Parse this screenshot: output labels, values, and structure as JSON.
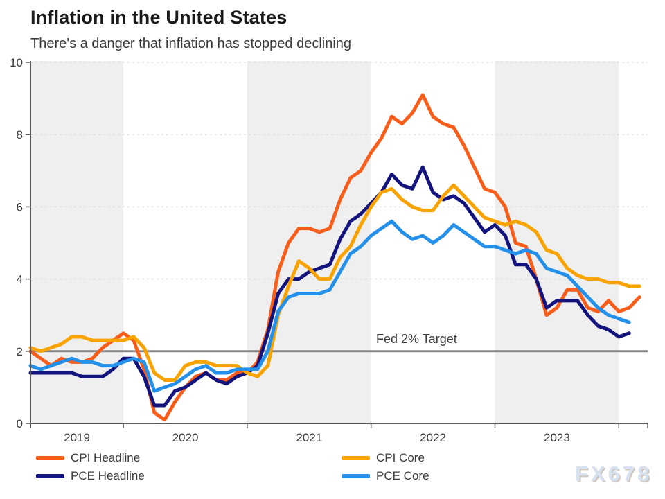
{
  "header": {
    "title": "Inflation in the United States",
    "subtitle": "There's a danger that inflation has stopped declining"
  },
  "watermark": "FX678",
  "annotation": {
    "fed_target_label": "Fed 2% Target",
    "fed_target_value": 2
  },
  "legend": {
    "items": [
      {
        "label": "CPI Headline",
        "series_index": 0
      },
      {
        "label": "PCE Headline",
        "series_index": 1
      },
      {
        "label": "CPI Core",
        "series_index": 2
      },
      {
        "label": "PCE Core",
        "series_index": 3
      }
    ]
  },
  "chart_data": {
    "type": "line",
    "title": "Inflation in the United States",
    "subtitle": "There's a danger that inflation has stopped declining",
    "x_start_month": "2019-04",
    "x_end_month": "2024-03",
    "x_tick_labels": [
      "2019",
      "2020",
      "2021",
      "2022",
      "2023"
    ],
    "ylim": [
      0,
      10
    ],
    "yticks": [
      0,
      2,
      4,
      6,
      8,
      10
    ],
    "grid": "horizontal-dashed",
    "year_band_fill": "#efefef",
    "axis_color": "#595959",
    "gridline_color": "#d9d9d9",
    "target_line": {
      "label": "Fed 2% Target",
      "value": 2,
      "color": "#8a8a8a"
    },
    "legend_position": "bottom",
    "series": [
      {
        "name": "CPI Headline",
        "color": "#F95D1A",
        "values": [
          2.0,
          1.8,
          1.6,
          1.8,
          1.7,
          1.7,
          1.8,
          2.1,
          2.3,
          2.5,
          2.3,
          1.5,
          0.3,
          0.1,
          0.6,
          1.0,
          1.3,
          1.4,
          1.2,
          1.2,
          1.4,
          1.4,
          1.7,
          2.6,
          4.2,
          5.0,
          5.4,
          5.4,
          5.3,
          5.4,
          6.2,
          6.8,
          7.0,
          7.5,
          7.9,
          8.5,
          8.3,
          8.6,
          9.1,
          8.5,
          8.3,
          8.2,
          7.7,
          7.1,
          6.5,
          6.4,
          6.0,
          5.0,
          4.9,
          4.0,
          3.0,
          3.2,
          3.7,
          3.7,
          3.2,
          3.1,
          3.4,
          3.1,
          3.2,
          3.5
        ]
      },
      {
        "name": "PCE Headline",
        "color": "#14147E",
        "values": [
          1.4,
          1.4,
          1.4,
          1.4,
          1.4,
          1.3,
          1.3,
          1.3,
          1.5,
          1.8,
          1.8,
          1.3,
          0.5,
          0.5,
          0.9,
          1.0,
          1.2,
          1.4,
          1.2,
          1.1,
          1.3,
          1.4,
          1.6,
          2.5,
          3.6,
          4.0,
          4.0,
          4.2,
          4.3,
          4.4,
          5.1,
          5.6,
          5.8,
          6.1,
          6.4,
          6.9,
          6.6,
          6.5,
          7.1,
          6.4,
          6.2,
          6.3,
          6.1,
          5.7,
          5.3,
          5.5,
          5.2,
          4.4,
          4.4,
          4.0,
          3.2,
          3.4,
          3.4,
          3.4,
          3.0,
          2.7,
          2.6,
          2.4,
          2.5
        ]
      },
      {
        "name": "CPI Core",
        "color": "#F9A302",
        "values": [
          2.1,
          2.0,
          2.1,
          2.2,
          2.4,
          2.4,
          2.3,
          2.3,
          2.3,
          2.3,
          2.4,
          2.1,
          1.4,
          1.2,
          1.2,
          1.6,
          1.7,
          1.7,
          1.6,
          1.6,
          1.6,
          1.4,
          1.3,
          1.6,
          3.0,
          3.8,
          4.5,
          4.3,
          4.0,
          4.0,
          4.6,
          4.9,
          5.5,
          6.0,
          6.4,
          6.5,
          6.2,
          6.0,
          5.9,
          5.9,
          6.3,
          6.6,
          6.3,
          6.0,
          5.7,
          5.6,
          5.5,
          5.6,
          5.5,
          5.3,
          4.8,
          4.7,
          4.3,
          4.1,
          4.0,
          4.0,
          3.9,
          3.9,
          3.8,
          3.8
        ]
      },
      {
        "name": "PCE Core",
        "color": "#2490E9",
        "values": [
          1.6,
          1.5,
          1.6,
          1.7,
          1.8,
          1.7,
          1.7,
          1.6,
          1.6,
          1.7,
          1.8,
          1.7,
          0.9,
          1.0,
          1.1,
          1.3,
          1.5,
          1.6,
          1.4,
          1.4,
          1.5,
          1.5,
          1.5,
          2.0,
          3.1,
          3.5,
          3.6,
          3.6,
          3.6,
          3.7,
          4.2,
          4.7,
          4.9,
          5.2,
          5.4,
          5.6,
          5.3,
          5.1,
          5.2,
          5.0,
          5.2,
          5.5,
          5.3,
          5.1,
          4.9,
          4.9,
          4.8,
          4.7,
          4.8,
          4.7,
          4.3,
          4.2,
          4.1,
          3.8,
          3.5,
          3.2,
          3.0,
          2.9,
          2.8
        ]
      }
    ]
  }
}
